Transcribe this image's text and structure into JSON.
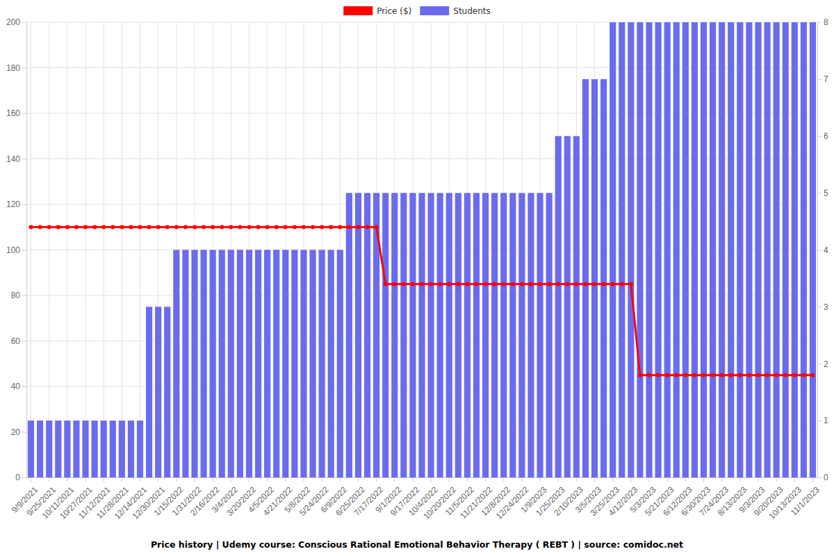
{
  "chart_data": {
    "type": "bar",
    "title": "Price history | Udemy course: Conscious Rational Emotional Behavior Therapy ( REBT ) | source: comidoc.net",
    "categories": [
      "9/9/2021",
      null,
      "9/25/2021",
      null,
      "10/11/2021",
      null,
      "10/27/2021",
      null,
      "11/12/2021",
      null,
      "11/28/2021",
      null,
      "12/14/2021",
      null,
      "12/30/2021",
      null,
      "1/15/2022",
      null,
      "1/31/2022",
      null,
      "2/16/2022",
      null,
      "3/4/2022",
      null,
      "3/20/2022",
      null,
      "4/5/2022",
      null,
      "4/21/2022",
      null,
      "5/8/2022",
      null,
      "5/24/2022",
      null,
      "6/9/2022",
      null,
      "6/25/2022",
      null,
      "7/17/2022",
      null,
      "9/1/2022",
      null,
      "9/17/2022",
      null,
      "10/4/2022",
      null,
      "10/20/2022",
      null,
      "11/5/2022",
      null,
      "11/21/2022",
      null,
      "12/8/2022",
      null,
      "12/24/2022",
      null,
      "1/9/2023",
      null,
      "1/25/2023",
      null,
      "2/10/2023",
      null,
      "3/5/2023",
      null,
      "3/25/2023",
      null,
      "4/12/2023",
      null,
      "5/3/2023",
      null,
      "5/21/2023",
      null,
      "6/12/2023",
      null,
      "6/30/2023",
      null,
      "7/24/2023",
      null,
      "8/13/2023",
      null,
      "9/3/2023",
      null,
      "9/20/2023",
      null,
      "10/13/2023",
      null,
      "11/1/2023"
    ],
    "series": [
      {
        "name": "Price ($)",
        "type": "line",
        "color": "#ff0000",
        "marker": "circle",
        "values": [
          110,
          110,
          110,
          110,
          110,
          110,
          110,
          110,
          110,
          110,
          110,
          110,
          110,
          110,
          110,
          110,
          110,
          110,
          110,
          110,
          110,
          110,
          110,
          110,
          110,
          110,
          110,
          110,
          110,
          110,
          110,
          110,
          110,
          110,
          110,
          110,
          110,
          110,
          110,
          85,
          85,
          85,
          85,
          85,
          85,
          85,
          85,
          85,
          85,
          85,
          85,
          85,
          85,
          85,
          85,
          85,
          85,
          85,
          85,
          85,
          85,
          85,
          85,
          85,
          85,
          85,
          85,
          45,
          45,
          45,
          45,
          45,
          45,
          45,
          45,
          45,
          45,
          45,
          45,
          45,
          45,
          45,
          45,
          45,
          45,
          45,
          45
        ]
      },
      {
        "name": "Students",
        "type": "bar",
        "axis": "y2",
        "color": "#6b6bef",
        "values": [
          1,
          1,
          1,
          1,
          1,
          1,
          1,
          1,
          1,
          1,
          1,
          1,
          1,
          3,
          3,
          3,
          4,
          4,
          4,
          4,
          4,
          4,
          4,
          4,
          4,
          4,
          4,
          4,
          4,
          4,
          4,
          4,
          4,
          4,
          4,
          5,
          5,
          5,
          5,
          5,
          5,
          5,
          5,
          5,
          5,
          5,
          5,
          5,
          5,
          5,
          5,
          5,
          5,
          5,
          5,
          5,
          5,
          5,
          6,
          6,
          6,
          7,
          7,
          7,
          8,
          8,
          8,
          8,
          8,
          8,
          8,
          8,
          8,
          8,
          8,
          8,
          8,
          8,
          8,
          8,
          8,
          8,
          8,
          8,
          8,
          8,
          8
        ]
      }
    ],
    "ylim": [
      0,
      200
    ],
    "yticks": [
      0,
      20,
      40,
      60,
      80,
      100,
      120,
      140,
      160,
      180,
      200
    ],
    "y2lim": [
      0,
      8
    ],
    "y2ticks": [
      0,
      1,
      2,
      3,
      4,
      5,
      6,
      7,
      8
    ],
    "grid": true,
    "legend": "top"
  }
}
